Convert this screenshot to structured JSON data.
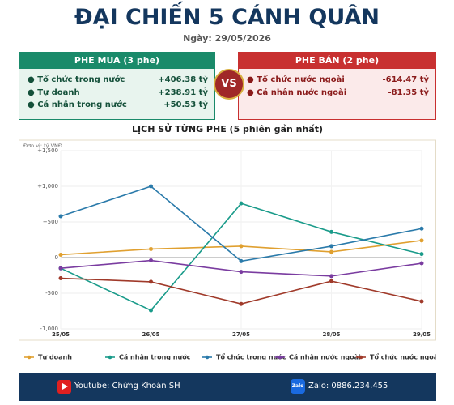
{
  "header": {
    "title": "ĐẠI CHIẾN 5 CÁNH QUÂN",
    "date": "Ngày: 29/05/2026"
  },
  "buy_panel": {
    "title": "PHE MUA  (3 phe)",
    "rows": [
      [
        "Tổ chức trong nước",
        "+406.38 tỷ"
      ],
      [
        "Tự doanh",
        "+238.91 tỷ"
      ],
      [
        "Cá nhân trong nước",
        "+50.53 tỷ"
      ]
    ]
  },
  "vs": "VS",
  "sell_panel": {
    "title": "PHE BÁN  (2 phe)",
    "rows": [
      [
        "Tổ chức nước ngoài",
        "-614.47 tỷ"
      ],
      [
        "Cá nhân nước ngoài",
        "-81.35 tỷ"
      ]
    ]
  },
  "chart_data": {
    "type": "line",
    "title": "LỊCH SỬ TỪNG PHE (5 phiên gần nhất)",
    "unit_label": "Đơn vị: tỷ VNĐ",
    "categories": [
      "25/05",
      "26/05",
      "27/05",
      "28/05",
      "29/05"
    ],
    "series": [
      {
        "name": "Tự doanh",
        "color": "#e0a030",
        "values": [
          40,
          120,
          160,
          80,
          240
        ]
      },
      {
        "name": "Cá nhân trong nước",
        "color": "#1a9b8a",
        "values": [
          -150,
          -740,
          760,
          360,
          50
        ]
      },
      {
        "name": "Tổ chức trong nước",
        "color": "#2a7aaa",
        "values": [
          580,
          1000,
          -50,
          160,
          406
        ]
      },
      {
        "name": "Cá nhân nước ngoài",
        "color": "#7a3ca0",
        "values": [
          -150,
          -40,
          -200,
          -260,
          -80
        ]
      },
      {
        "name": "Tổ chức nước ngoài",
        "color": "#a03a2a",
        "values": [
          -290,
          -340,
          -650,
          -330,
          -614
        ]
      }
    ],
    "ylim": [
      -1000,
      1500
    ],
    "yticks": [
      {
        "value": -1000,
        "label": "-1,000"
      },
      -500,
      0,
      {
        "value": 500,
        "label": "+500"
      },
      {
        "value": 1000,
        "label": "+1,000"
      },
      {
        "value": 1500,
        "label": "+1,500"
      }
    ],
    "grid": true,
    "legend": "bottom"
  },
  "footer": {
    "youtube": "Youtube: Chứng Khoán SH",
    "zalo_icon": "Zalo",
    "zalo": "Zalo: 0886.234.455"
  }
}
